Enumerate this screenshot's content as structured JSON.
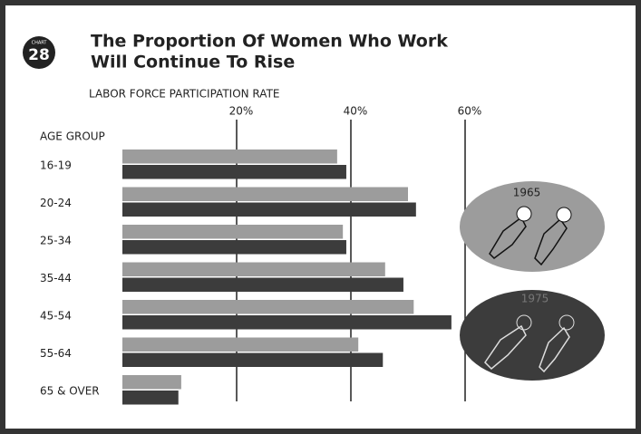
{
  "chart_data": {
    "type": "barh",
    "badge_label": "CHART",
    "chart_number": "28",
    "title": [
      "The Proportion Of Women Who Work",
      "Will Continue To Rise"
    ],
    "xlabel": "LABOR FORCE PARTICIPATION RATE",
    "ylabel": "AGE GROUP",
    "categories": [
      "16-19",
      "20-24",
      "25-34",
      "35-44",
      "45-54",
      "55-64",
      "65 & OVER"
    ],
    "series": [
      {
        "name": "1965",
        "color": "#9c9c9c",
        "values": [
          37.6,
          50,
          38.6,
          46,
          51,
          41.3,
          10.3
        ]
      },
      {
        "name": "1975",
        "color": "#3c3c3c",
        "values": [
          39.2,
          51.4,
          39.2,
          49.2,
          57.6,
          45.6,
          9.8
        ]
      }
    ],
    "xlim": [
      0,
      80
    ],
    "xticks": [
      {
        "value": 20,
        "label": "20%"
      },
      {
        "value": 40,
        "label": "40%"
      },
      {
        "value": 60,
        "label": "60%"
      }
    ],
    "grid": true
  }
}
